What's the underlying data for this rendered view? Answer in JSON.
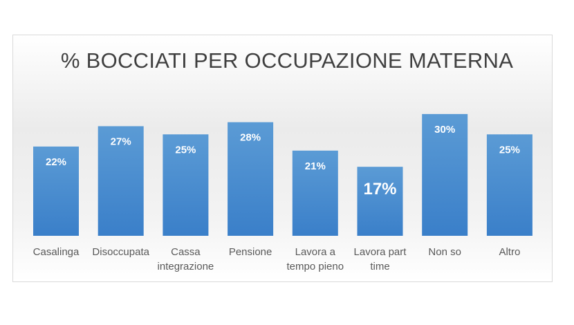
{
  "chart_data": {
    "type": "bar",
    "title": "% BOCCIATI PER OCCUPAZIONE MATERNA",
    "categories": [
      [
        "Casalinga"
      ],
      [
        "Disoccupata"
      ],
      [
        "Cassa",
        "integrazione"
      ],
      [
        "Pensione"
      ],
      [
        "Lavora a",
        "tempo pieno"
      ],
      [
        "Lavora part",
        "time"
      ],
      [
        "Non so"
      ],
      [
        "Altro"
      ]
    ],
    "values": [
      22,
      27,
      25,
      28,
      21,
      17,
      30,
      25
    ],
    "value_labels": [
      "22%",
      "27%",
      "25%",
      "28%",
      "21%",
      "17%",
      "30%",
      "25%"
    ],
    "emphasized_label_index": 5,
    "xlabel": "",
    "ylabel": "",
    "ylim": [
      0,
      30.5
    ],
    "grid": false,
    "legend": "none",
    "bar_color_top": "#5b9bd5",
    "bar_color_bottom": "#3a7fc9"
  }
}
